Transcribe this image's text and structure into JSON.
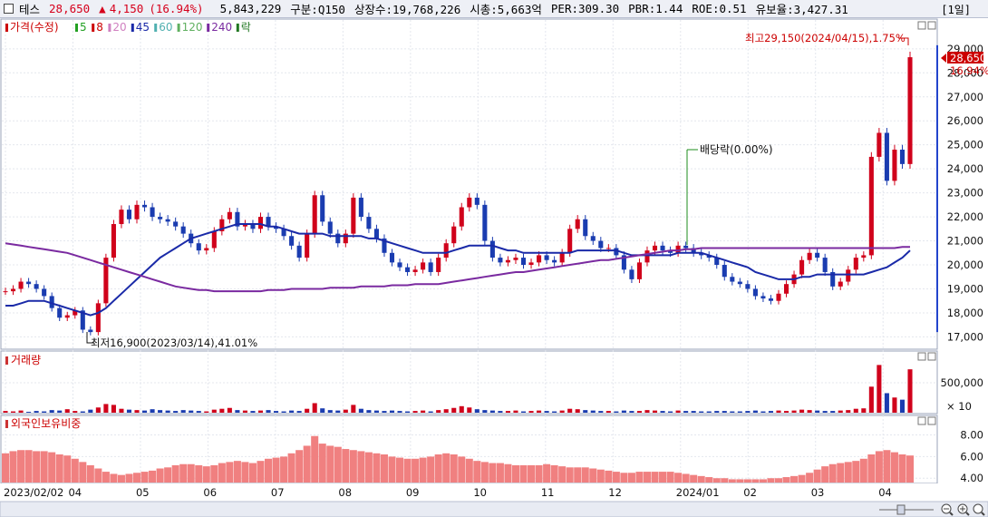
{
  "header": {
    "stock_name": "테스",
    "price": "28,650",
    "change_arrow": "▲",
    "change": "4,150",
    "change_pct": "(16.94%)",
    "volume": "5,843,229",
    "category": "구분:Q150",
    "listed_shares": "상장수:19,768,226",
    "market_cap": "시총:5,663억",
    "per": "PER:309.30",
    "pbr": "PBR:1.44",
    "roe": "ROE:0.51",
    "float": "유보율:3,427.31",
    "period": "[1일]"
  },
  "price_panel": {
    "legend": [
      {
        "label": "가격(수정)",
        "color": "#cc0000"
      },
      {
        "label": "5",
        "color": "#22a022"
      },
      {
        "label": "8",
        "color": "#cc0000"
      },
      {
        "label": "20",
        "color": "#d080c0"
      },
      {
        "label": "45",
        "color": "#1a2aa8"
      },
      {
        "label": "60",
        "color": "#50b0b0"
      },
      {
        "label": "120",
        "color": "#60b060"
      },
      {
        "label": "240",
        "color": "#7a2aa0"
      },
      {
        "label": "락",
        "color": "#227722"
      }
    ],
    "high_annotation": "최고29,150(2024/04/15),1.75%",
    "low_annotation": "최저16,900(2023/03/14),41.01%",
    "dividend_annotation": "배당락(0.00%)",
    "current_price_tag": "28,650",
    "current_pct_tag": "16.94%"
  },
  "volume_panel": {
    "title": "거래량",
    "unit_label": "× 10"
  },
  "foreign_panel": {
    "title": "외국인보유비중"
  },
  "x_axis_labels": [
    "2023/02/02",
    "04",
    "05",
    "06",
    "07",
    "08",
    "09",
    "10",
    "11",
    "12",
    "2024/01",
    "02",
    "03",
    "04"
  ],
  "chart_data": [
    {
      "type": "line",
      "title": "",
      "y_ticks": [
        17000,
        18000,
        19000,
        20000,
        21000,
        22000,
        23000,
        24000,
        25000,
        26000,
        27000,
        28000,
        29000
      ],
      "ylim": [
        16600,
        29900
      ],
      "x_tick_labels": [
        "2023/02/02",
        "04",
        "05",
        "06",
        "07",
        "08",
        "09",
        "10",
        "11",
        "12",
        "2024/01",
        "02",
        "03",
        "04"
      ],
      "series": [
        {
          "name": "가격(수정)",
          "values": [
            18900,
            19000,
            19300,
            19200,
            19000,
            18700,
            18200,
            17800,
            17900,
            18100,
            17300,
            17200,
            18400,
            20300,
            21700,
            22300,
            21900,
            22500,
            22400,
            22000,
            21900,
            21800,
            21600,
            21300,
            20900,
            20600,
            20700,
            21400,
            21900,
            22200,
            21600,
            21700,
            21500,
            22000,
            21600,
            21500,
            21200,
            20800,
            20300,
            21300,
            22900,
            21800,
            21300,
            20900,
            21300,
            22800,
            22000,
            21500,
            21100,
            20500,
            20100,
            19900,
            19700,
            19800,
            20100,
            19700,
            20300,
            20900,
            21600,
            22400,
            22800,
            22500,
            21000,
            20300,
            20100,
            20200,
            20300,
            20000,
            20100,
            20400,
            20200,
            20100,
            20500,
            21500,
            21900,
            21200,
            21000,
            20700,
            20700,
            20400,
            19800,
            19400,
            20100,
            20600,
            20800,
            20600,
            20500,
            20800,
            20700,
            20500,
            20400,
            20300,
            20000,
            19500,
            19300,
            19200,
            19000,
            18700,
            18600,
            18500,
            18800,
            19200,
            19600,
            20200,
            20500,
            20300,
            19700,
            19100,
            19300,
            19800,
            20300,
            20400,
            24500,
            25500,
            23500,
            24800,
            24200,
            28650
          ]
        },
        {
          "name": "45",
          "values": [
            18300,
            18300,
            18400,
            18500,
            18500,
            18500,
            18400,
            18300,
            18200,
            18100,
            18000,
            17900,
            18000,
            18200,
            18500,
            18800,
            19100,
            19400,
            19700,
            20000,
            20300,
            20500,
            20700,
            20900,
            21100,
            21200,
            21300,
            21400,
            21500,
            21600,
            21700,
            21700,
            21700,
            21700,
            21600,
            21600,
            21500,
            21400,
            21300,
            21300,
            21300,
            21300,
            21200,
            21200,
            21200,
            21200,
            21200,
            21100,
            21100,
            21000,
            20900,
            20800,
            20700,
            20600,
            20500,
            20500,
            20500,
            20500,
            20600,
            20700,
            20800,
            20800,
            20800,
            20800,
            20700,
            20600,
            20600,
            20500,
            20500,
            20500,
            20500,
            20500,
            20500,
            20500,
            20600,
            20600,
            20600,
            20600,
            20600,
            20600,
            20500,
            20400,
            20400,
            20400,
            20400,
            20400,
            20400,
            20500,
            20500,
            20500,
            20500,
            20400,
            20300,
            20200,
            20100,
            20000,
            19900,
            19700,
            19600,
            19500,
            19400,
            19400,
            19400,
            19500,
            19500,
            19600,
            19600,
            19600,
            19600,
            19600,
            19600,
            19600,
            19700,
            19800,
            19900,
            20100,
            20300,
            20600
          ]
        },
        {
          "name": "240",
          "values": [
            20900,
            20850,
            20800,
            20750,
            20700,
            20650,
            20600,
            20550,
            20500,
            20400,
            20300,
            20200,
            20100,
            20000,
            19900,
            19800,
            19700,
            19600,
            19500,
            19400,
            19300,
            19200,
            19100,
            19050,
            19000,
            18950,
            18950,
            18900,
            18900,
            18900,
            18900,
            18900,
            18900,
            18900,
            18950,
            18950,
            18950,
            19000,
            19000,
            19000,
            19000,
            19000,
            19050,
            19050,
            19050,
            19050,
            19100,
            19100,
            19100,
            19100,
            19150,
            19150,
            19150,
            19200,
            19200,
            19200,
            19200,
            19250,
            19300,
            19350,
            19400,
            19450,
            19500,
            19550,
            19600,
            19650,
            19700,
            19700,
            19750,
            19800,
            19850,
            19900,
            19950,
            20000,
            20050,
            20100,
            20150,
            20200,
            20200,
            20250,
            20300,
            20350,
            20400,
            20450,
            20500,
            20550,
            20600,
            20600,
            20650,
            20650,
            20700,
            20700,
            20700,
            20700,
            20700,
            20700,
            20700,
            20700,
            20700,
            20700,
            20700,
            20700,
            20700,
            20700,
            20700,
            20700,
            20700,
            20700,
            20700,
            20700,
            20700,
            20700,
            20700,
            20700,
            20700,
            20700,
            20750,
            20750
          ]
        }
      ]
    },
    {
      "type": "bar",
      "title": "거래량",
      "y_ticks": [
        500000
      ],
      "values": [
        4,
        3,
        5,
        2,
        4,
        3,
        6,
        5,
        8,
        4,
        3,
        7,
        12,
        20,
        18,
        9,
        7,
        6,
        5,
        8,
        6,
        5,
        4,
        6,
        5,
        4,
        3,
        7,
        9,
        11,
        6,
        5,
        4,
        5,
        6,
        4,
        3,
        5,
        4,
        9,
        22,
        10,
        6,
        5,
        7,
        18,
        9,
        6,
        5,
        4,
        5,
        4,
        3,
        4,
        5,
        3,
        6,
        8,
        11,
        15,
        12,
        8,
        6,
        5,
        4,
        4,
        5,
        3,
        4,
        5,
        4,
        3,
        5,
        9,
        8,
        6,
        5,
        4,
        4,
        3,
        5,
        4,
        4,
        6,
        5,
        4,
        3,
        5,
        4,
        4,
        3,
        3,
        4,
        4,
        3,
        3,
        4,
        5,
        3,
        4,
        5,
        4,
        5,
        7,
        6,
        5,
        4,
        4,
        5,
        6,
        9,
        10,
        60,
        110,
        45,
        35,
        30,
        100
      ],
      "ylim": [
        0,
        115
      ]
    },
    {
      "type": "bar",
      "title": "외국인보유비중",
      "y_ticks": [
        4.0,
        6.0,
        8.0
      ],
      "ylim": [
        3.6,
        8.8
      ],
      "values": [
        6.3,
        6.5,
        6.6,
        6.6,
        6.5,
        6.5,
        6.4,
        6.2,
        6.1,
        5.8,
        5.5,
        5.2,
        4.9,
        4.6,
        4.4,
        4.3,
        4.4,
        4.5,
        4.6,
        4.7,
        4.9,
        5.0,
        5.2,
        5.3,
        5.3,
        5.2,
        5.1,
        5.2,
        5.4,
        5.5,
        5.6,
        5.5,
        5.4,
        5.6,
        5.8,
        5.9,
        6.0,
        6.3,
        6.6,
        7.0,
        7.9,
        7.2,
        7.0,
        6.9,
        6.7,
        6.6,
        6.5,
        6.4,
        6.3,
        6.2,
        6.0,
        5.9,
        5.8,
        5.8,
        5.9,
        6.0,
        6.2,
        6.3,
        6.2,
        6.0,
        5.8,
        5.6,
        5.5,
        5.4,
        5.4,
        5.3,
        5.2,
        5.2,
        5.2,
        5.2,
        5.3,
        5.2,
        5.1,
        5.0,
        5.0,
        5.0,
        4.9,
        4.8,
        4.7,
        4.6,
        4.5,
        4.5,
        4.6,
        4.6,
        4.6,
        4.6,
        4.6,
        4.5,
        4.4,
        4.3,
        4.2,
        4.1,
        4.0,
        4.0,
        3.9,
        3.9,
        3.9,
        3.9,
        3.9,
        4.0,
        4.0,
        4.1,
        4.2,
        4.3,
        4.5,
        4.8,
        5.1,
        5.3,
        5.4,
        5.5,
        5.6,
        5.8,
        6.2,
        6.5,
        6.6,
        6.4,
        6.2,
        6.1
      ]
    }
  ]
}
